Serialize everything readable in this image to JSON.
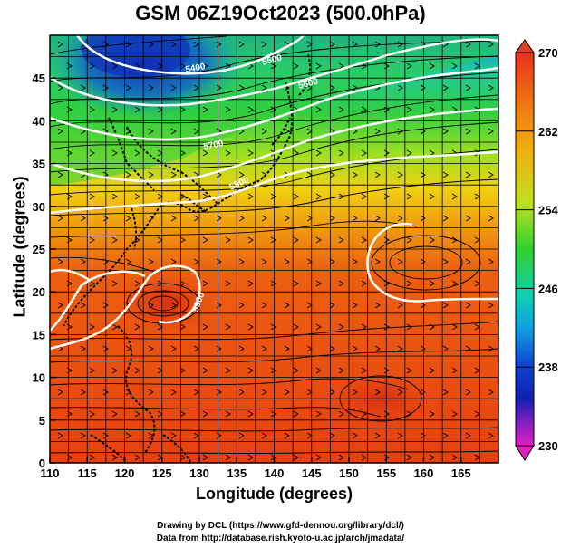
{
  "title": "GSM 06Z19Oct2023 (500.0hPa)",
  "xlabel": "Longitude (degrees)",
  "ylabel": "Latitude  (degrees)",
  "credits": {
    "line1": "Drawing by DCL (https://www.gfd-dennou.org/library/dcl/)",
    "line2": "Data from http://database.rish.kyoto-u.ac.jp/arch/jmadata/"
  },
  "map": {
    "lon_range": [
      110,
      170
    ],
    "lat_range": [
      0,
      50
    ],
    "x_ticks": [
      "110",
      "115",
      "120",
      "125",
      "130",
      "135",
      "140",
      "145",
      "150",
      "155",
      "160",
      "165"
    ],
    "y_ticks": [
      "0",
      "5",
      "10",
      "15",
      "20",
      "25",
      "30",
      "35",
      "40",
      "45"
    ],
    "grid": true,
    "contour_labels": [
      "5400",
      "5500",
      "5600",
      "5700",
      "5800",
      "5900"
    ]
  },
  "colorbar": {
    "range": [
      230,
      270
    ],
    "ticks": [
      "270",
      "262",
      "254",
      "246",
      "238",
      "230"
    ]
  },
  "colors": {
    "cold": "#1030c0",
    "cool": "#10c0e0",
    "mid": "#30d020",
    "warm": "#f0d010",
    "hot": "#e84010"
  }
}
